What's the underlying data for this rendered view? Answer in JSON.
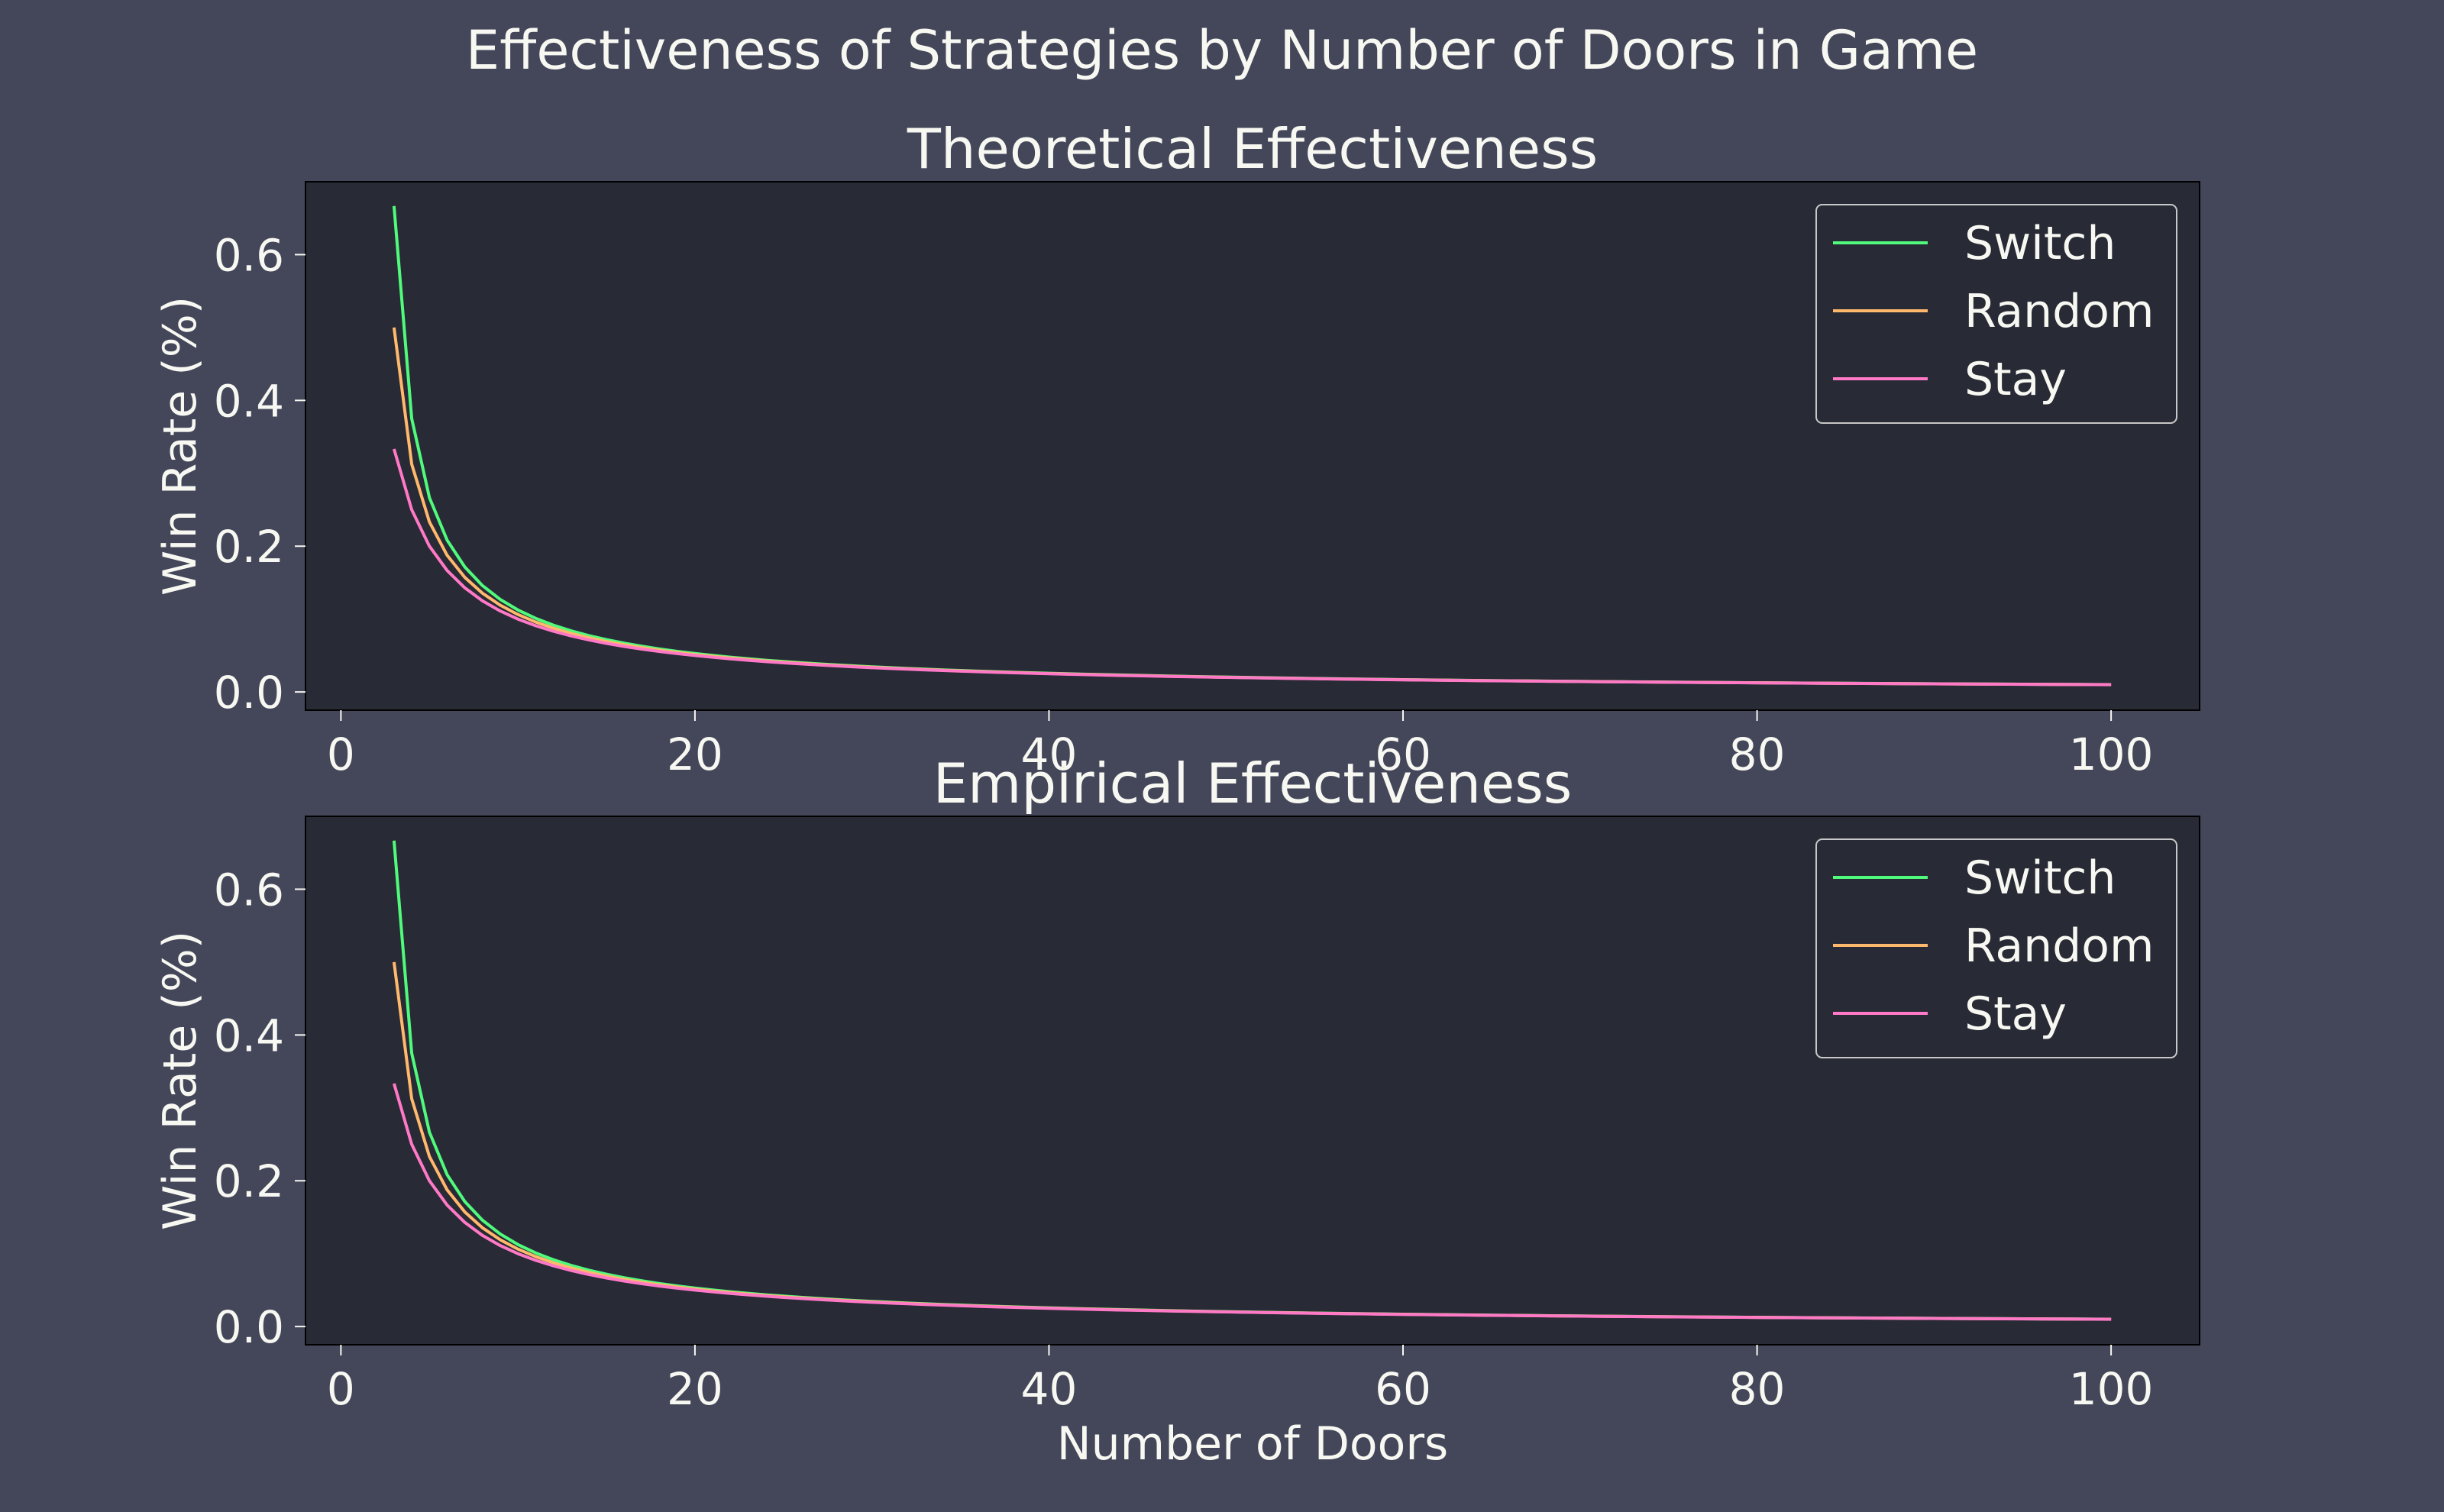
{
  "figure": {
    "suptitle": "Effectiveness of Strategies by Number of Doors in Game",
    "background": "#44475a",
    "axes_background": "#282a36",
    "text_color": "#f8f8f2"
  },
  "chart_data": [
    {
      "type": "line",
      "title": "Theoretical Effectiveness",
      "xlabel": "",
      "ylabel": "Win Rate (%)",
      "xlim": [
        -2,
        105
      ],
      "ylim": [
        -0.025,
        0.7
      ],
      "xticks": [
        0,
        20,
        40,
        60,
        80,
        100
      ],
      "yticks": [
        0.0,
        0.2,
        0.4,
        0.6
      ],
      "ytick_labels": [
        "0.0",
        "0.2",
        "0.4",
        "0.6"
      ],
      "grid": false,
      "legend_position": "top-right",
      "x": {
        "start": 3,
        "end": 100,
        "step": 1
      },
      "series": [
        {
          "name": "Switch",
          "color": "#50fa7b",
          "formula": "(n-1)/(n*(n-2))",
          "sample_values": [
            [
              3,
              0.667
            ],
            [
              4,
              0.375
            ],
            [
              5,
              0.267
            ],
            [
              10,
              0.1125
            ],
            [
              20,
              0.0528
            ],
            [
              50,
              0.0204
            ],
            [
              100,
              0.0101
            ]
          ]
        },
        {
          "name": "Random",
          "color": "#ffb86c",
          "formula": "avg(stay, switch)",
          "sample_values": [
            [
              3,
              0.5
            ],
            [
              4,
              0.3125
            ],
            [
              5,
              0.233
            ],
            [
              10,
              0.106
            ],
            [
              20,
              0.0514
            ],
            [
              50,
              0.0202
            ],
            [
              100,
              0.01005
            ]
          ]
        },
        {
          "name": "Stay",
          "color": "#ff79c6",
          "formula": "1/n",
          "sample_values": [
            [
              3,
              0.333
            ],
            [
              4,
              0.25
            ],
            [
              5,
              0.2
            ],
            [
              10,
              0.1
            ],
            [
              20,
              0.05
            ],
            [
              50,
              0.02
            ],
            [
              100,
              0.01
            ]
          ]
        }
      ]
    },
    {
      "type": "line",
      "title": "Empirical Effectiveness",
      "xlabel": "Number of Doors",
      "ylabel": "Win Rate (%)",
      "xlim": [
        -2,
        105
      ],
      "ylim": [
        -0.025,
        0.7
      ],
      "xticks": [
        0,
        20,
        40,
        60,
        80,
        100
      ],
      "yticks": [
        0.0,
        0.2,
        0.4,
        0.6
      ],
      "ytick_labels": [
        "0.0",
        "0.2",
        "0.4",
        "0.6"
      ],
      "grid": false,
      "legend_position": "top-right",
      "x": {
        "start": 3,
        "end": 100,
        "step": 1
      },
      "series": [
        {
          "name": "Switch",
          "color": "#50fa7b",
          "formula": "(n-1)/(n*(n-2))",
          "sample_values": [
            [
              3,
              0.667
            ],
            [
              4,
              0.375
            ],
            [
              5,
              0.267
            ],
            [
              10,
              0.1125
            ],
            [
              20,
              0.0528
            ],
            [
              50,
              0.0204
            ],
            [
              100,
              0.0101
            ]
          ]
        },
        {
          "name": "Random",
          "color": "#ffb86c",
          "formula": "avg(stay, switch)",
          "sample_values": [
            [
              3,
              0.5
            ],
            [
              4,
              0.3125
            ],
            [
              5,
              0.233
            ],
            [
              10,
              0.106
            ],
            [
              20,
              0.0514
            ],
            [
              50,
              0.0202
            ],
            [
              100,
              0.01005
            ]
          ]
        },
        {
          "name": "Stay",
          "color": "#ff79c6",
          "formula": "1/n",
          "sample_values": [
            [
              3,
              0.333
            ],
            [
              4,
              0.25
            ],
            [
              5,
              0.2
            ],
            [
              10,
              0.1
            ],
            [
              20,
              0.05
            ],
            [
              50,
              0.02
            ],
            [
              100,
              0.01
            ]
          ]
        }
      ]
    }
  ]
}
